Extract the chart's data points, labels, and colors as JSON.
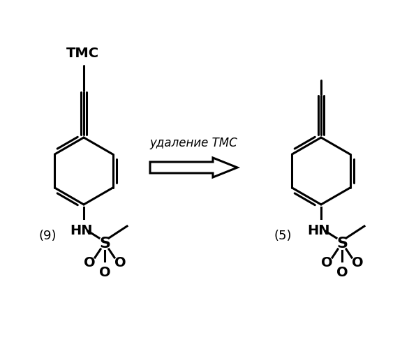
{
  "title": "",
  "bg_color": "#ffffff",
  "arrow_label": "удаление ТМС",
  "compound1_label": "(9)",
  "compound2_label": "(5)",
  "tmc_label": "ТМС"
}
